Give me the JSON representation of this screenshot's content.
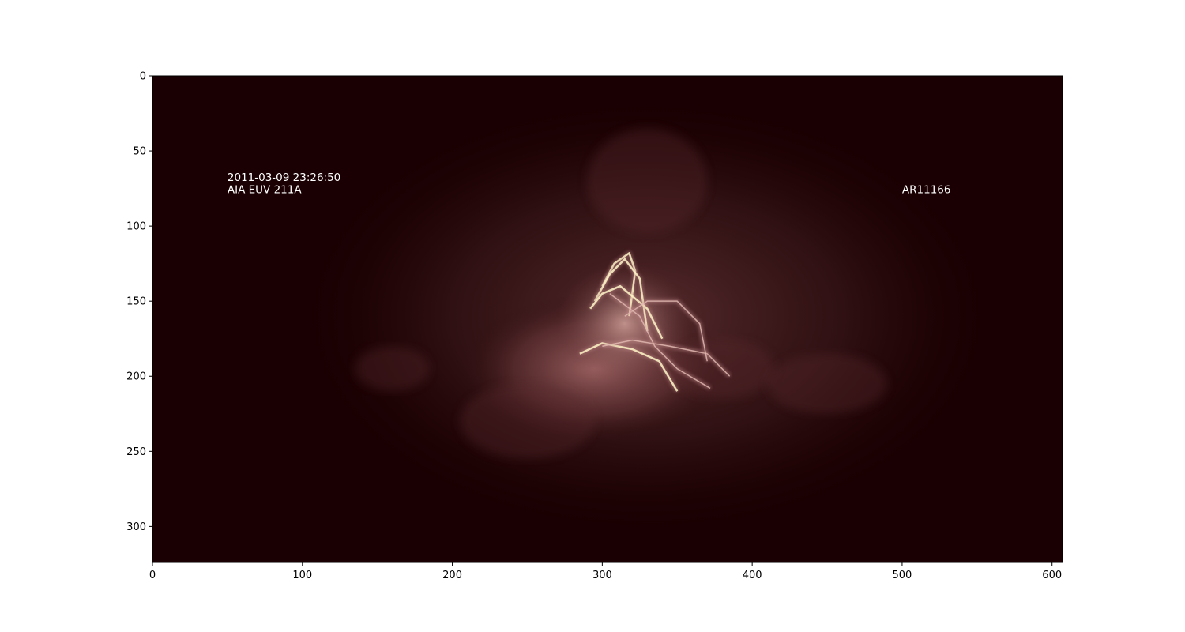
{
  "chart_data": {
    "type": "heatmap",
    "title": "",
    "xlabel": "",
    "ylabel": "",
    "xlim": [
      0,
      607
    ],
    "ylim": [
      324,
      0
    ],
    "x_ticks": [
      0,
      100,
      200,
      300,
      400,
      500,
      600
    ],
    "y_ticks": [
      0,
      50,
      100,
      150,
      200,
      250,
      300
    ],
    "colormap": "pinkish-dark (sdoaia211-like)",
    "colors": {
      "background": "#1a0002",
      "bright": "#fff7c8"
    },
    "annotations": [
      {
        "id": "date",
        "text": "2011-03-09 23:26:50",
        "x": 50,
        "y": 70
      },
      {
        "id": "instrument",
        "text": "AIA EUV 211A",
        "x": 50,
        "y": 78
      },
      {
        "id": "region",
        "text": "AR11166",
        "x": 500,
        "y": 78
      }
    ],
    "features": [
      {
        "name": "diffuse-corona",
        "cx": 330,
        "cy": 160,
        "rx": 240,
        "ry": 150,
        "intensity": 0.12
      },
      {
        "name": "active-region-core",
        "cx": 295,
        "cy": 195,
        "rx": 90,
        "ry": 50,
        "intensity": 0.35
      },
      {
        "name": "loop-bundle",
        "cx": 315,
        "cy": 165,
        "rx": 45,
        "ry": 40,
        "intensity": 0.7
      }
    ]
  }
}
